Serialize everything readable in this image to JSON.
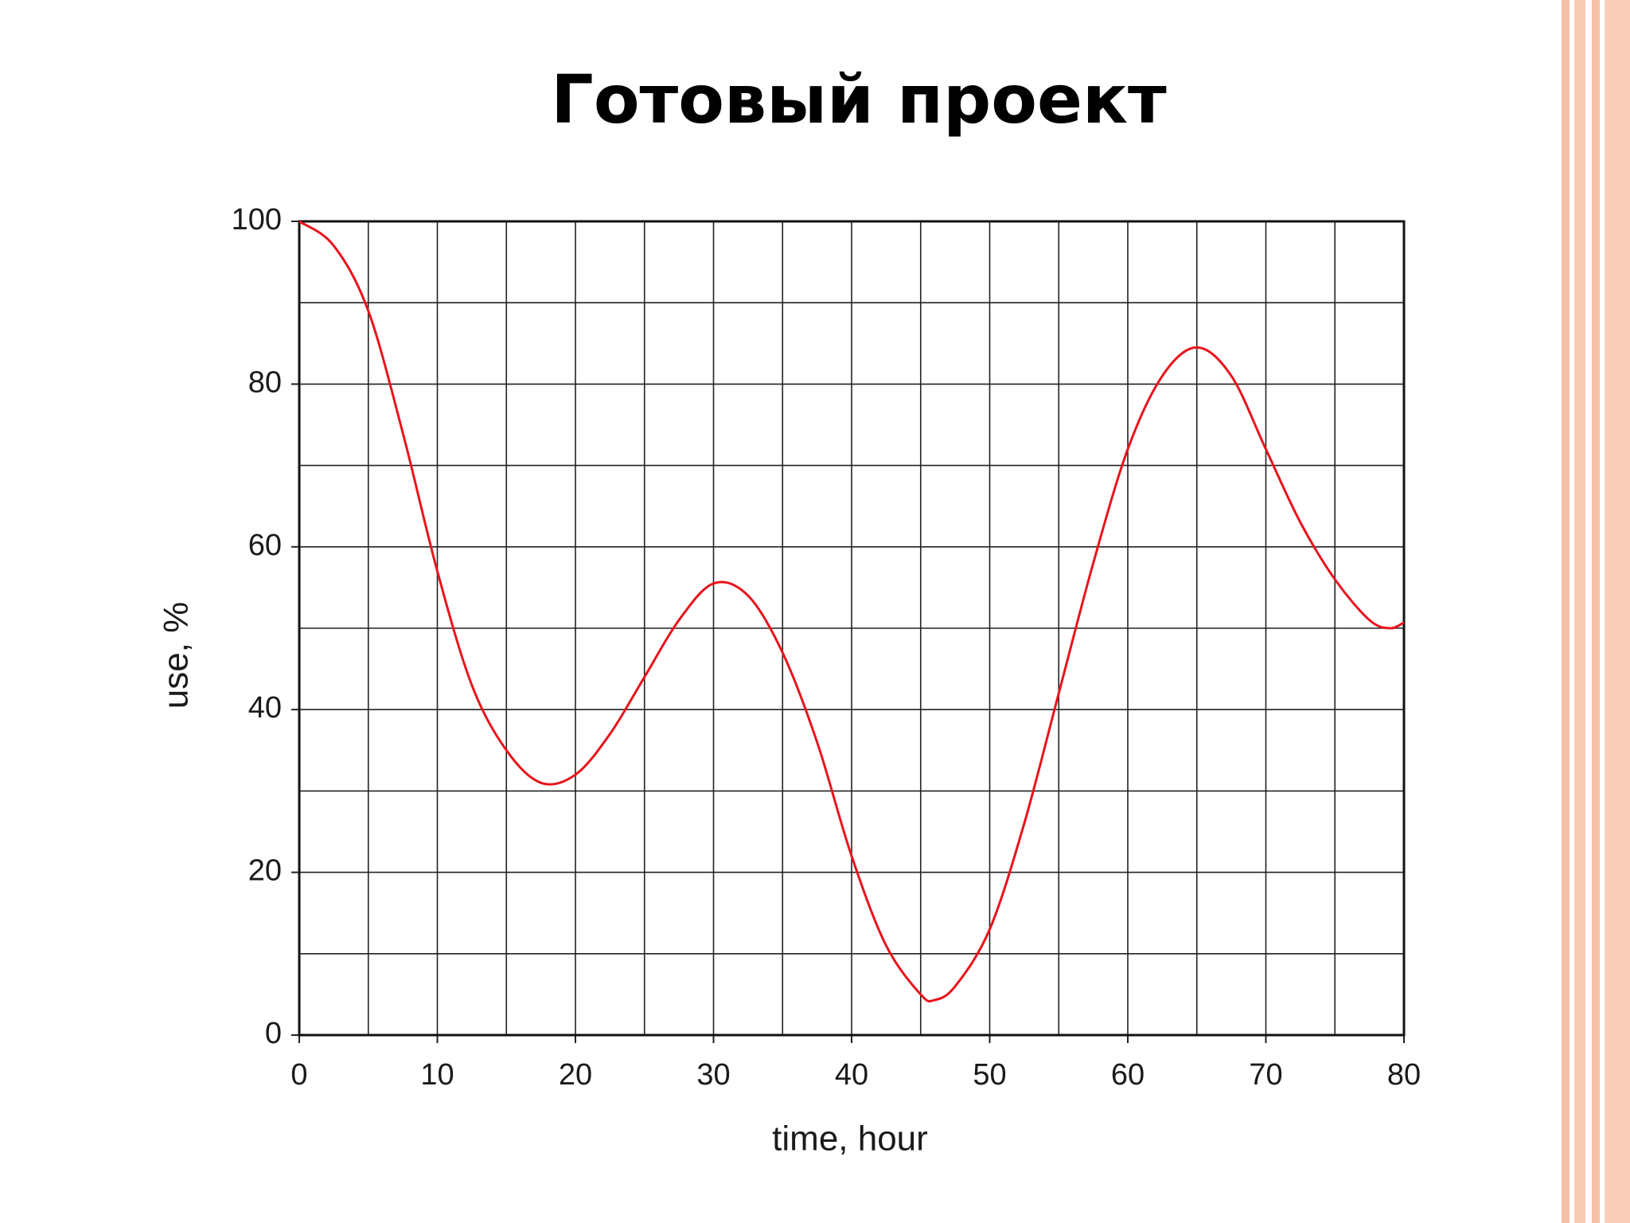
{
  "chart_data": {
    "type": "line",
    "title": "Готовый проект",
    "xlabel": "time, hour",
    "ylabel": "use, %",
    "x": [
      0,
      2.5,
      5,
      7.5,
      10,
      12.5,
      15,
      17.5,
      20,
      22.5,
      25,
      27.5,
      30,
      32.5,
      35,
      37.5,
      40,
      42.5,
      45,
      46,
      47.5,
      50,
      52.5,
      55,
      57.5,
      60,
      62.5,
      65,
      67.5,
      70,
      72.5,
      75,
      77.5,
      79,
      80
    ],
    "series": [
      {
        "name": "use",
        "color": "#e8141c",
        "values": [
          100,
          97,
          89,
          74,
          57,
          43,
          35,
          31,
          32,
          37,
          44,
          51,
          55.5,
          54,
          47,
          36,
          22,
          11,
          5,
          4.3,
          6,
          13,
          26,
          42,
          58,
          72,
          81,
          84.5,
          81,
          72,
          63,
          56,
          51,
          50,
          50.7
        ]
      }
    ],
    "xlim": [
      0,
      80
    ],
    "ylim": [
      0,
      100
    ],
    "xticks": [
      0,
      10,
      20,
      30,
      40,
      50,
      60,
      70,
      80
    ],
    "yticks": [
      0,
      20,
      40,
      60,
      80,
      100
    ],
    "xminorticks": [
      5,
      15,
      25,
      35,
      45,
      55,
      65,
      75
    ],
    "yminorticks": [
      10,
      30,
      50,
      70,
      90
    ],
    "grid": true
  }
}
